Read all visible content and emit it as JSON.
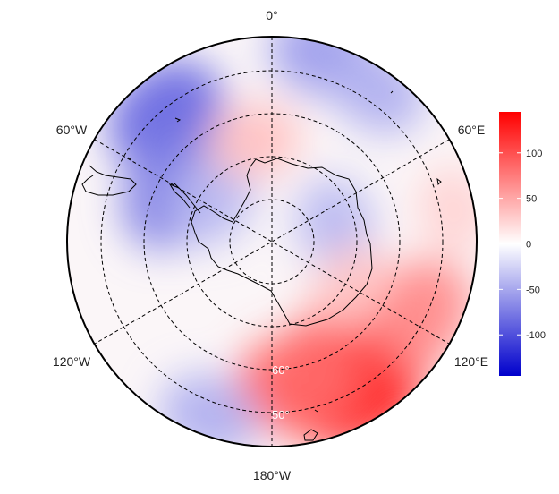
{
  "map": {
    "projection": "south-polar-stereographic",
    "longitude_labels": {
      "top": "0°",
      "upper_left": "60°W",
      "upper_right": "60°E",
      "lower_left": "120°W",
      "lower_right": "120°E",
      "bottom": "180°W"
    },
    "latitude_labels": [
      "60°",
      "50°"
    ]
  },
  "colorbar": {
    "range": [
      -145,
      145
    ],
    "ticks": [
      100,
      50,
      0,
      -50,
      -100
    ],
    "tick_labels": [
      "100",
      "50",
      "0",
      "-50",
      "-100"
    ],
    "colors": {
      "low": "#0000cc",
      "mid": "#ffffff",
      "high": "#ff0000"
    }
  },
  "anomalies": [
    {
      "lon_deg": 150,
      "rho": 0.78,
      "value": 135
    },
    {
      "lon_deg": 135,
      "rho": 0.62,
      "value": 110
    },
    {
      "lon_deg": 170,
      "rho": 0.7,
      "value": 85
    },
    {
      "lon_deg": 115,
      "rho": 0.82,
      "value": 65
    },
    {
      "lon_deg": -40,
      "rho": 0.8,
      "value": -85
    },
    {
      "lon_deg": -65,
      "rho": 0.55,
      "value": -70
    },
    {
      "lon_deg": -55,
      "rho": 0.35,
      "value": -40
    },
    {
      "lon_deg": 15,
      "rho": 0.95,
      "value": -55
    },
    {
      "lon_deg": 35,
      "rho": 0.9,
      "value": -45
    },
    {
      "lon_deg": 75,
      "rho": 0.32,
      "value": -40
    },
    {
      "lon_deg": -10,
      "rho": 0.5,
      "value": 35
    },
    {
      "lon_deg": 80,
      "rho": 0.9,
      "value": 25
    },
    {
      "lon_deg": -160,
      "rho": 0.9,
      "value": -45
    },
    {
      "lon_deg": 120,
      "rho": 0.45,
      "value": 30
    }
  ]
}
